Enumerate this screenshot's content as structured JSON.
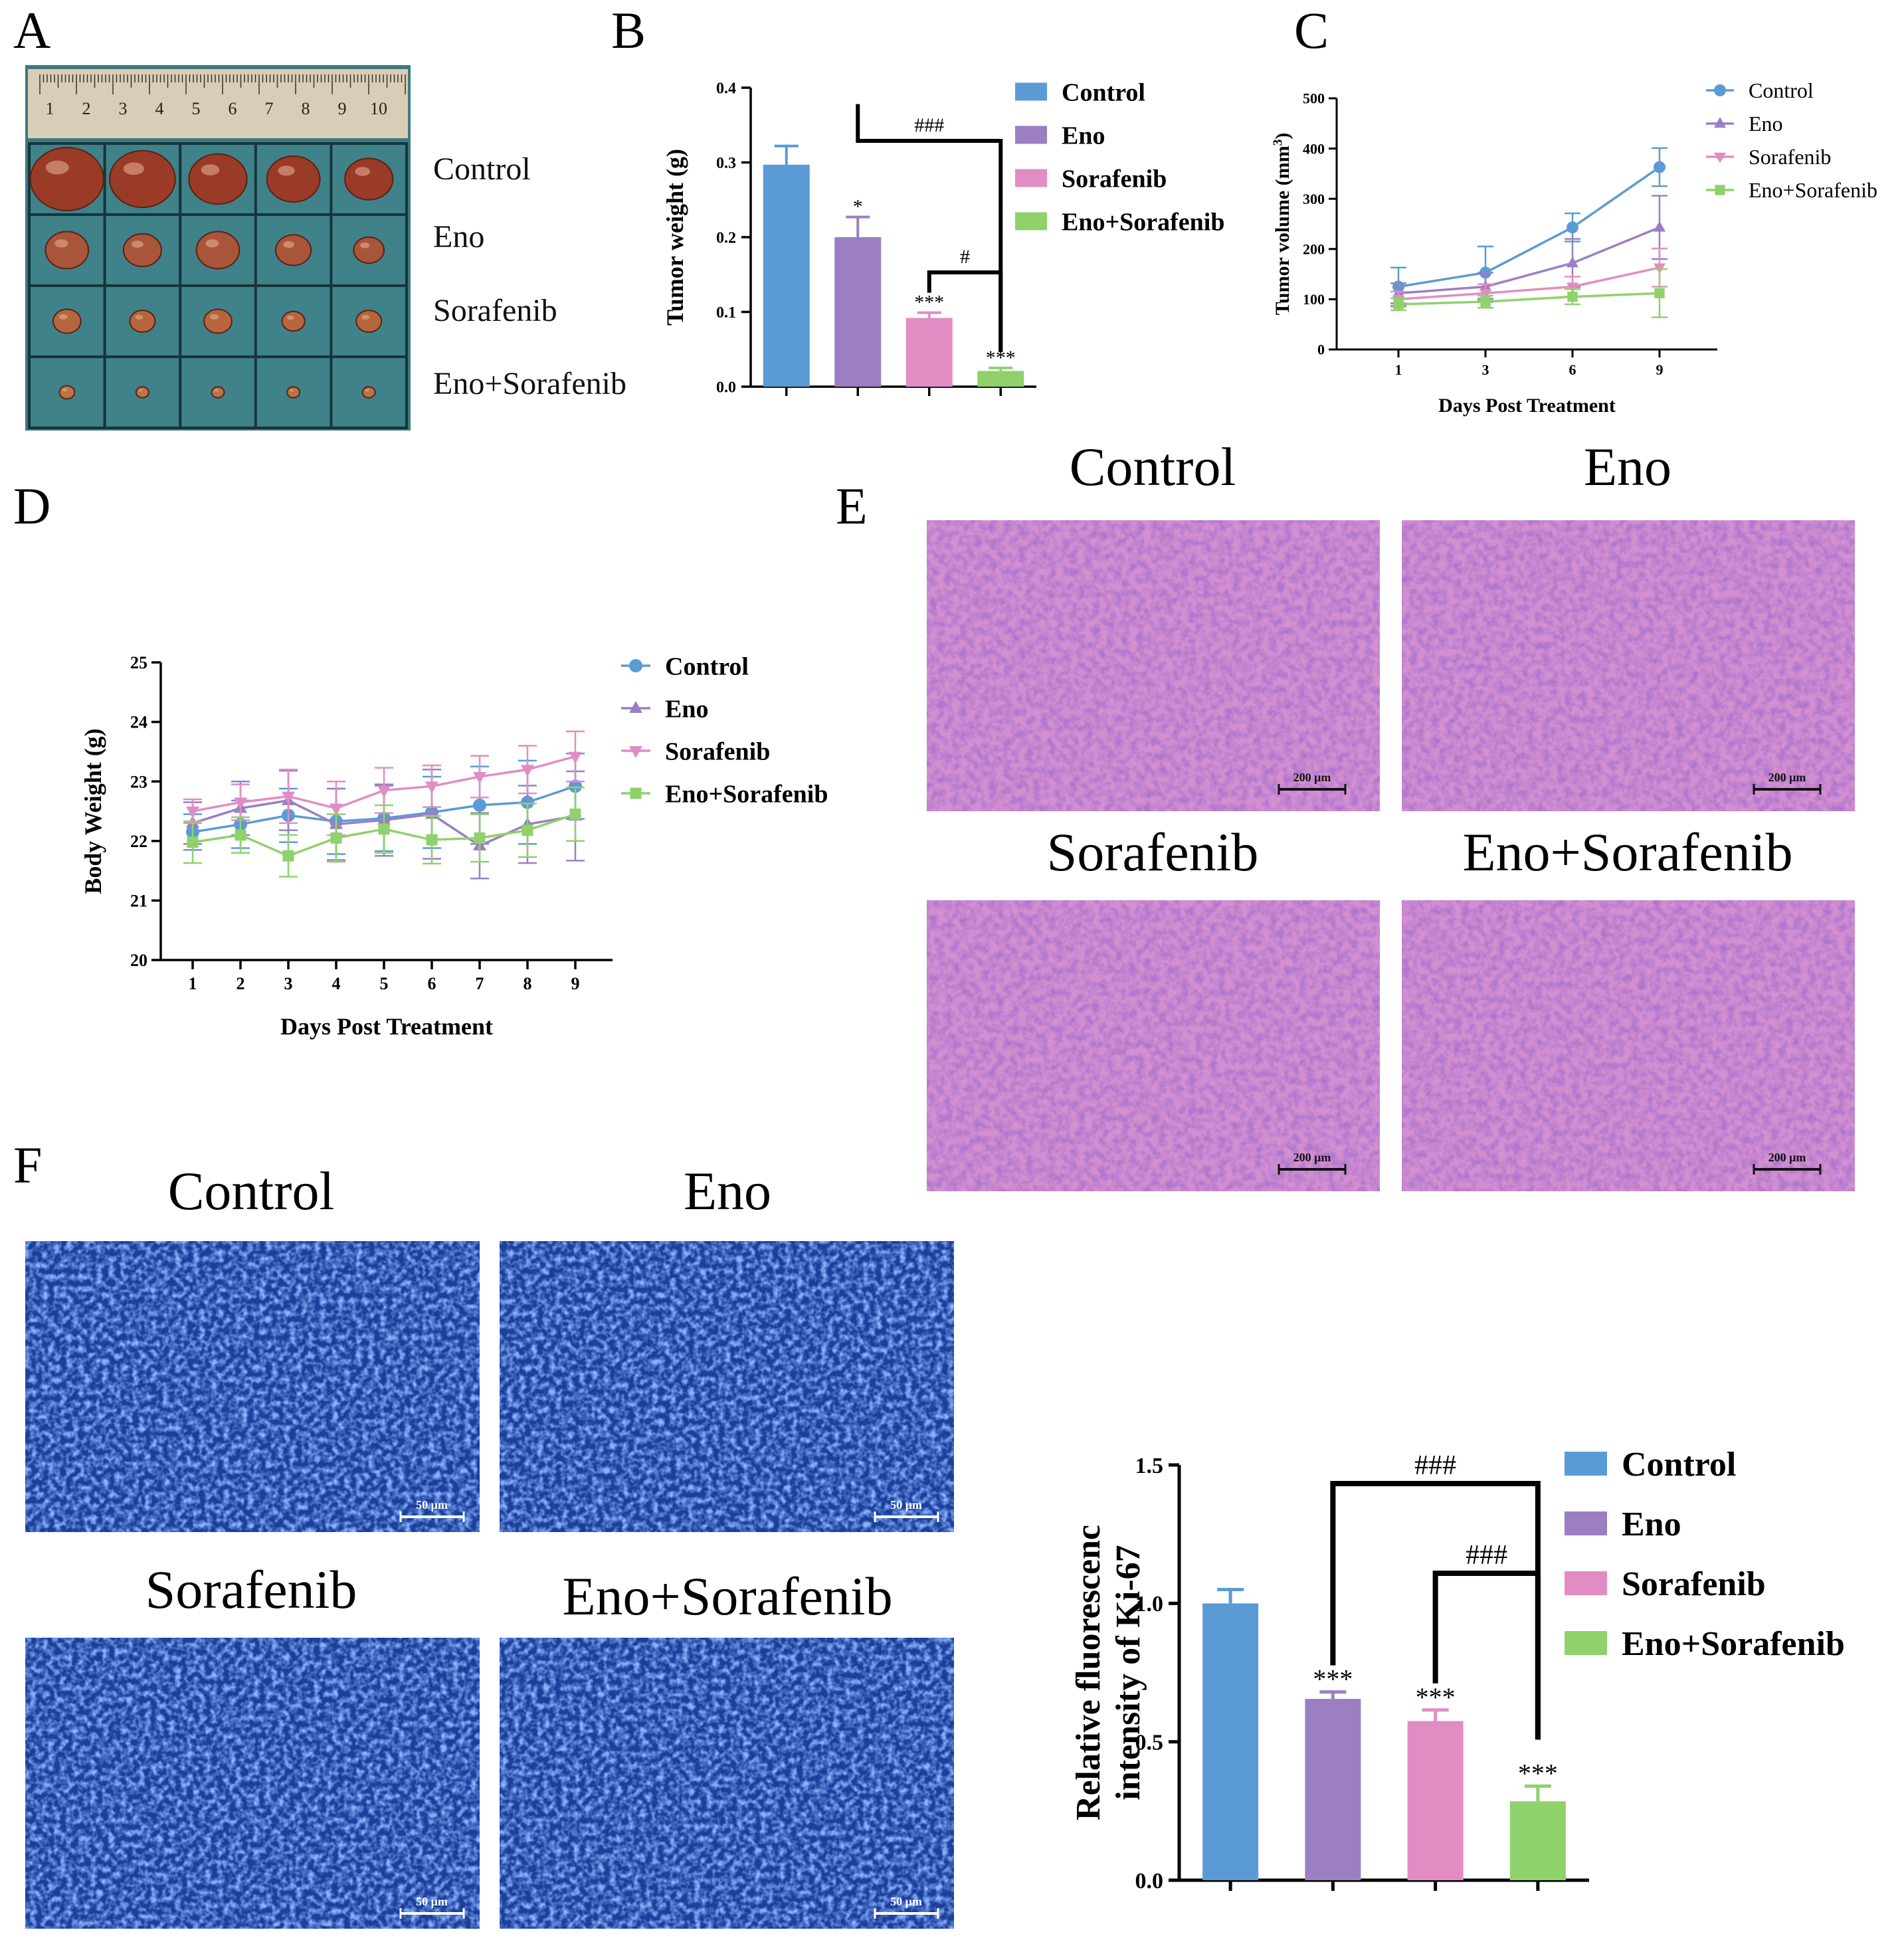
{
  "panel_letters": [
    "A",
    "B",
    "C",
    "D",
    "E",
    "F"
  ],
  "colors": {
    "Control": "#5b9bd5",
    "Eno": "#9b7fc2",
    "Sorafenib": "#e18dc4",
    "Eno+Sorafenib": "#8fd16b",
    "board": "#2f6b72",
    "he_tissue": "#d48fd0",
    "if_tissue": "#1b3f9a"
  },
  "panel_a": {
    "row_labels": [
      "Control",
      "Eno",
      "Sorafenib",
      "Eno+Sorafenib"
    ],
    "ruler_numbers": [
      "1",
      "2",
      "3",
      "4",
      "5",
      "6",
      "7",
      "8",
      "9",
      "10"
    ]
  },
  "panel_e": {
    "image_labels": [
      "Control",
      "Eno",
      "Sorafenib",
      "Eno+Sorafenib"
    ],
    "scale_bar_label": "200 μm"
  },
  "panel_f": {
    "image_labels": [
      "Control",
      "Eno",
      "Sorafenib",
      "Eno+Sorafenib"
    ],
    "scale_bar_label": "50 μm"
  },
  "chart_data": [
    {
      "id": "B",
      "type": "bar",
      "ylabel": "Tumor weight (g)",
      "xlabel": "",
      "ylim": [
        0,
        0.4
      ],
      "yticks": [
        "0.0",
        "0.1",
        "0.2",
        "0.3",
        "0.4"
      ],
      "categories": [
        "Control",
        "Eno",
        "Sorafenib",
        "Eno+Sorafenib"
      ],
      "values": [
        0.297,
        0.2,
        0.092,
        0.021
      ],
      "errors": [
        0.025,
        0.027,
        0.007,
        0.004
      ],
      "significance": [
        "",
        "*",
        "***",
        "***"
      ],
      "comparisons": [
        {
          "from": 1,
          "to": 3,
          "label": "###"
        },
        {
          "from": 2,
          "to": 3,
          "label": "#"
        }
      ],
      "legend": [
        "Control",
        "Eno",
        "Sorafenib",
        "Eno+Sorafenib"
      ],
      "legend_position": "right"
    },
    {
      "id": "C",
      "type": "line",
      "ylabel": "Tumor volume (mm3)",
      "xlabel": "Days Post Treatment",
      "ylim": [
        0,
        500
      ],
      "yticks": [
        "0",
        "100",
        "200",
        "300",
        "400",
        "500"
      ],
      "x": [
        "1",
        "3",
        "6",
        "9"
      ],
      "series": [
        {
          "name": "Control",
          "values": [
            125,
            153,
            243,
            363
          ],
          "errors": [
            38,
            52,
            28,
            38
          ]
        },
        {
          "name": "Eno",
          "values": [
            112,
            125,
            172,
            243
          ],
          "errors": [
            20,
            28,
            48,
            63
          ]
        },
        {
          "name": "Sorafenib",
          "values": [
            100,
            112,
            125,
            163
          ],
          "errors": [
            15,
            18,
            20,
            38
          ]
        },
        {
          "name": "Eno+Sorafenib",
          "values": [
            90,
            95,
            105,
            112
          ],
          "errors": [
            12,
            12,
            15,
            48
          ]
        }
      ],
      "legend_position": "top-right"
    },
    {
      "id": "D",
      "type": "line",
      "ylabel": "Body Weight (g)",
      "xlabel": "Days Post Treatment",
      "ylim": [
        20,
        25
      ],
      "yticks": [
        "20",
        "21",
        "22",
        "23",
        "24",
        "25"
      ],
      "x": [
        "1",
        "2",
        "3",
        "4",
        "5",
        "6",
        "7",
        "8",
        "9"
      ],
      "series": [
        {
          "name": "Control",
          "values": [
            22.15,
            22.28,
            22.43,
            22.33,
            22.38,
            22.48,
            22.6,
            22.65,
            22.92
          ],
          "errors": [
            0.3,
            0.4,
            0.45,
            0.55,
            0.55,
            0.6,
            0.65,
            0.7,
            0.55
          ]
        },
        {
          "name": "Eno",
          "values": [
            22.3,
            22.55,
            22.68,
            22.28,
            22.35,
            22.45,
            21.92,
            22.28,
            22.42
          ],
          "errors": [
            0.35,
            0.45,
            0.5,
            0.6,
            0.6,
            0.75,
            0.55,
            0.65,
            0.75
          ]
        },
        {
          "name": "Sorafenib",
          "values": [
            22.5,
            22.65,
            22.75,
            22.55,
            22.85,
            22.92,
            23.08,
            23.2,
            23.42
          ],
          "errors": [
            0.2,
            0.3,
            0.45,
            0.45,
            0.38,
            0.35,
            0.35,
            0.4,
            0.42
          ]
        },
        {
          "name": "Eno+Sorafenib",
          "values": [
            21.98,
            22.1,
            21.75,
            22.05,
            22.2,
            22.02,
            22.05,
            22.18,
            22.45
          ],
          "errors": [
            0.35,
            0.3,
            0.35,
            0.4,
            0.4,
            0.4,
            0.4,
            0.45,
            0.45
          ]
        }
      ],
      "legend_position": "right"
    },
    {
      "id": "F",
      "type": "bar",
      "ylabel": "Relative fluorescenc intensity of Ki-67",
      "xlabel": "",
      "ylim": [
        0,
        1.5
      ],
      "yticks": [
        "0.0",
        "0.5",
        "1.0",
        "1.5"
      ],
      "categories": [
        "Control",
        "Eno",
        "Sorafenib",
        "Eno+Sorafenib"
      ],
      "values": [
        1.0,
        0.655,
        0.575,
        0.285
      ],
      "errors": [
        0.05,
        0.025,
        0.04,
        0.055
      ],
      "significance": [
        "",
        "***",
        "***",
        "***"
      ],
      "comparisons": [
        {
          "from": 1,
          "to": 3,
          "label": "###"
        },
        {
          "from": 2,
          "to": 3,
          "label": "###"
        }
      ],
      "legend": [
        "Control",
        "Eno",
        "Sorafenib",
        "Eno+Sorafenib"
      ],
      "legend_position": "right"
    }
  ]
}
